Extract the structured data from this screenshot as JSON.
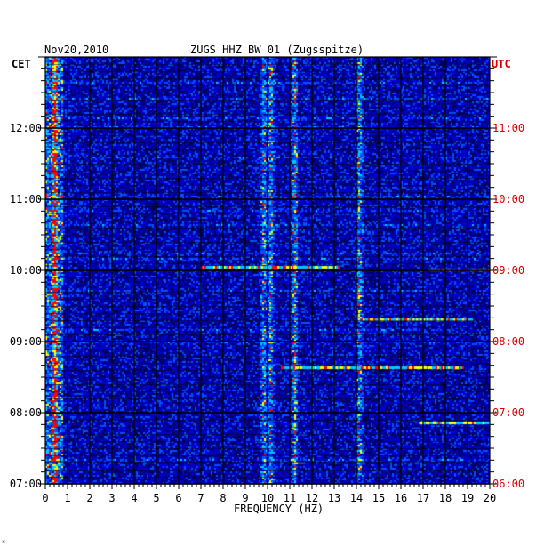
{
  "chart_data": {
    "type": "heatmap",
    "date_label": "Nov20,2010",
    "title": "ZUGS HHZ BW 01 (Zugsspitze)",
    "xlabel": "FREQUENCY (HZ)",
    "left_axis_label": "CET",
    "right_axis_label": "UTC",
    "x_ticks": [
      "0",
      "1",
      "2",
      "3",
      "4",
      "5",
      "6",
      "7",
      "8",
      "9",
      "10",
      "11",
      "12",
      "13",
      "14",
      "15",
      "16",
      "17",
      "18",
      "19",
      "20"
    ],
    "xlim": [
      0,
      20
    ],
    "left_time_ticks": [
      "12:00",
      "11:00",
      "10:00",
      "09:00",
      "08:00",
      "07:00"
    ],
    "right_time_ticks": [
      "11:00",
      "10:00",
      "09:00",
      "08:00",
      "07:00",
      "06:00"
    ],
    "time_range_cet": [
      "07:00",
      "13:00"
    ],
    "grid": true,
    "colormap": [
      "#000060",
      "#0000c8",
      "#0050ff",
      "#00c8ff",
      "#ffff00",
      "#ff0000"
    ],
    "prominent_frequency_lines_hz": [
      0.4,
      9.8,
      10.1,
      11.2,
      14.1
    ],
    "footnote": "*"
  },
  "colors": {
    "background": "#0018c0",
    "grid": "#000000",
    "utc_text": "#dd0000",
    "cet_text": "#000000"
  }
}
